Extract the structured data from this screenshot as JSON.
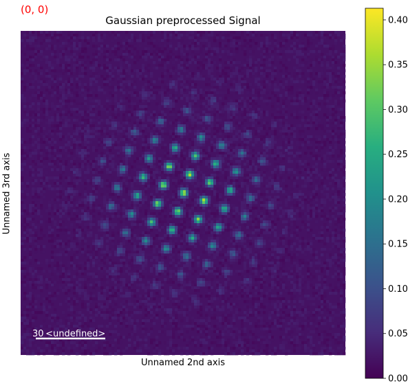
{
  "chart_data": {
    "type": "heatmap",
    "title": "Gaussian preprocessed Signal",
    "corner_label": "(0, 0)",
    "xlabel": "Unnamed 2nd axis",
    "ylabel": "Unnamed 3rd axis",
    "scalebar": {
      "value": "30",
      "units": "<undefined>"
    },
    "colormap": "viridis",
    "colorbar": {
      "range": [
        0.0,
        0.413
      ],
      "ticks": [
        0.0,
        0.05,
        0.1,
        0.15,
        0.2,
        0.25,
        0.3,
        0.35,
        0.4
      ],
      "tick_labels": [
        "0.00",
        "0.05",
        "0.10",
        "0.15",
        "0.20",
        "0.25",
        "0.30",
        "0.35",
        "0.40"
      ]
    },
    "peak_value": 0.413,
    "background_level": 0.02,
    "axes_visible": false
  }
}
